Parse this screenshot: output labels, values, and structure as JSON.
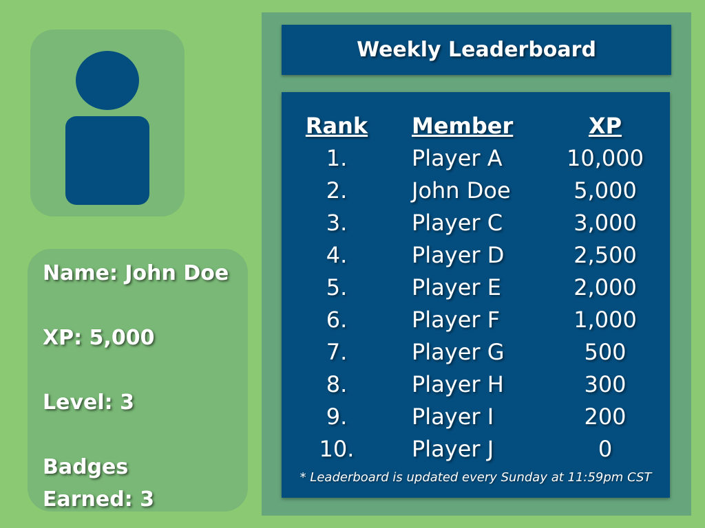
{
  "profile": {
    "name_line": "Name: John Doe",
    "xp_line": "XP: 5,000",
    "level_line": "Level: 3",
    "badges_line1": "Badges",
    "badges_line2": "Earned: 3"
  },
  "leaderboard": {
    "title": "Weekly Leaderboard",
    "headers": {
      "rank": "Rank",
      "member": "Member",
      "xp": "XP"
    },
    "rows": [
      {
        "rank": "1.",
        "member": "Player A",
        "xp": "10,000"
      },
      {
        "rank": "2.",
        "member": "John Doe",
        "xp": "5,000"
      },
      {
        "rank": "3.",
        "member": "Player C",
        "xp": "3,000"
      },
      {
        "rank": "4.",
        "member": "Player D",
        "xp": "2,500"
      },
      {
        "rank": "5.",
        "member": "Player E",
        "xp": "2,000"
      },
      {
        "rank": "6.",
        "member": "Player F",
        "xp": "1,000"
      },
      {
        "rank": "7.",
        "member": "Player G",
        "xp": "500"
      },
      {
        "rank": "8.",
        "member": "Player H",
        "xp": "300"
      },
      {
        "rank": "9.",
        "member": "Player I",
        "xp": "200"
      },
      {
        "rank": "10.",
        "member": "Player J",
        "xp": "0"
      }
    ],
    "footnote": "* Leaderboard is updated every Sunday at 11:59pm CST"
  },
  "colors": {
    "background": "#8bca72",
    "card": "#79b876",
    "frame": "#67a57d",
    "navy": "#044e7f",
    "text": "#ffffff"
  }
}
